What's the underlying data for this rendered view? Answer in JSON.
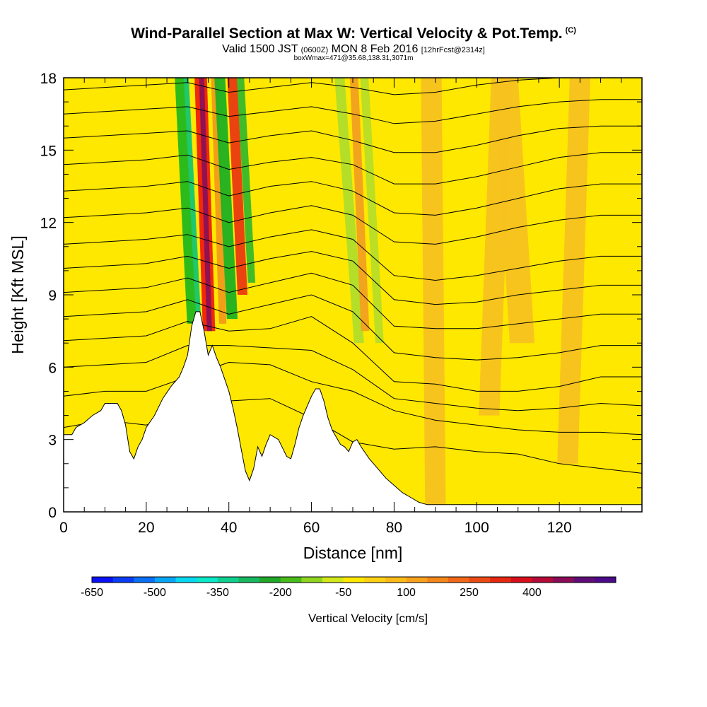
{
  "title": "Wind-Parallel Section at Max W: Vertical Velocity & Pot.Temp.",
  "copyright": "(C)",
  "subtitle": {
    "valid": "Valid 1500 JST",
    "utc": "(0600Z)",
    "date": "MON 8 Feb 2016",
    "forecast": "[12hrFcst@2314z]"
  },
  "box_info": "boxWmax=471@35.68,138.31,3071m",
  "chart_data": {
    "type": "heatmap",
    "xlabel": "Distance [nm]",
    "ylabel": "Height [Kft MSL]",
    "xlim": [
      0,
      140
    ],
    "ylim": [
      0,
      18
    ],
    "x_ticks": [
      0,
      20,
      40,
      60,
      80,
      100,
      120
    ],
    "y_ticks": [
      0,
      3,
      6,
      9,
      12,
      15,
      18
    ],
    "background_value_color": "#ffe800",
    "terrain_profile": [
      [
        0,
        3.2
      ],
      [
        2,
        3.2
      ],
      [
        3,
        3.5
      ],
      [
        5,
        3.7
      ],
      [
        7,
        4.0
      ],
      [
        9,
        4.2
      ],
      [
        10,
        4.5
      ],
      [
        13,
        4.5
      ],
      [
        14,
        4.2
      ],
      [
        15,
        3.6
      ],
      [
        16,
        2.5
      ],
      [
        17,
        2.2
      ],
      [
        18,
        2.7
      ],
      [
        19,
        3.0
      ],
      [
        20,
        3.5
      ],
      [
        22,
        4.0
      ],
      [
        24,
        4.7
      ],
      [
        26,
        5.2
      ],
      [
        28,
        5.6
      ],
      [
        29,
        6.0
      ],
      [
        30,
        6.5
      ],
      [
        31,
        7.7
      ],
      [
        32,
        8.3
      ],
      [
        33,
        8.3
      ],
      [
        34,
        7.5
      ],
      [
        35,
        6.5
      ],
      [
        36,
        6.9
      ],
      [
        37,
        6.4
      ],
      [
        38,
        6.0
      ],
      [
        39,
        5.5
      ],
      [
        40,
        5.0
      ],
      [
        41,
        4.3
      ],
      [
        42,
        3.5
      ],
      [
        43,
        2.6
      ],
      [
        44,
        1.7
      ],
      [
        45,
        1.3
      ],
      [
        46,
        1.8
      ],
      [
        47,
        2.7
      ],
      [
        48,
        2.3
      ],
      [
        49,
        2.8
      ],
      [
        50,
        3.2
      ],
      [
        52,
        3.0
      ],
      [
        54,
        2.3
      ],
      [
        55,
        2.2
      ],
      [
        56,
        2.8
      ],
      [
        57,
        3.5
      ],
      [
        58,
        4.0
      ],
      [
        59,
        4.4
      ],
      [
        60,
        4.8
      ],
      [
        61,
        5.1
      ],
      [
        62,
        5.1
      ],
      [
        63,
        4.6
      ],
      [
        64,
        3.9
      ],
      [
        65,
        3.4
      ],
      [
        66,
        3.1
      ],
      [
        67,
        2.8
      ],
      [
        68,
        2.7
      ],
      [
        69,
        2.5
      ],
      [
        70,
        2.9
      ],
      [
        71,
        3.0
      ],
      [
        72,
        2.7
      ],
      [
        74,
        2.2
      ],
      [
        76,
        1.8
      ],
      [
        78,
        1.4
      ],
      [
        80,
        1.1
      ],
      [
        82,
        0.8
      ],
      [
        84,
        0.6
      ],
      [
        86,
        0.4
      ],
      [
        88,
        0.3
      ],
      [
        90,
        0.3
      ],
      [
        140,
        0.3
      ]
    ],
    "vertical_velocity_bands": [
      {
        "x_bottom": 31.5,
        "x_top": 28.5,
        "half_width": 1.6,
        "bottom": 7.8,
        "color": "#22b81e"
      },
      {
        "x_bottom": 32.7,
        "x_top": 29.7,
        "half_width": 0.6,
        "bottom": 7.8,
        "color": "#1fc872"
      },
      {
        "x_bottom": 35.2,
        "x_top": 33.2,
        "half_width": 1.5,
        "bottom": 7.5,
        "color": "#f01e0a"
      },
      {
        "x_bottom": 35.3,
        "x_top": 33.4,
        "half_width": 0.6,
        "bottom": 7.5,
        "color": "#8a1058"
      },
      {
        "x_bottom": 38.5,
        "x_top": 36.6,
        "half_width": 0.9,
        "bottom": 7.8,
        "color": "#f29a1a"
      },
      {
        "x_bottom": 40.8,
        "x_top": 37.8,
        "half_width": 1.3,
        "bottom": 8.0,
        "color": "#1fb022"
      },
      {
        "x_bottom": 43.3,
        "x_top": 40.8,
        "half_width": 1.2,
        "bottom": 9.0,
        "color": "#ea3a10"
      },
      {
        "x_bottom": 45.5,
        "x_top": 42.8,
        "half_width": 0.9,
        "bottom": 9.5,
        "color": "#38b82a"
      },
      {
        "x_bottom": 71.5,
        "x_top": 66.8,
        "half_width": 1.2,
        "bottom": 7.0,
        "color": "#b0dd2a"
      },
      {
        "x_bottom": 73.0,
        "x_top": 70.3,
        "half_width": 1.0,
        "bottom": 7.5,
        "color": "#f2a020"
      },
      {
        "x_bottom": 76.5,
        "x_top": 72.8,
        "half_width": 1.0,
        "bottom": 7.0,
        "color": "#b8dd26"
      },
      {
        "x_bottom": 90.0,
        "x_top": 89.0,
        "half_width": 2.5,
        "bottom": 0.3,
        "color": "#f7c21f"
      },
      {
        "x_bottom": 103.0,
        "x_top": 106.0,
        "half_width": 2.5,
        "bottom": 4.0,
        "color": "#f7c21f"
      },
      {
        "x_bottom": 111.0,
        "x_top": 107.0,
        "half_width": 3.0,
        "bottom": 7.0,
        "color": "#f7c21f"
      },
      {
        "x_bottom": 122.0,
        "x_top": 125.0,
        "half_width": 2.5,
        "bottom": 2.0,
        "color": "#f7c21f"
      }
    ],
    "theta_contours": [
      [
        [
          0,
          3.5
        ],
        [
          10,
          3.8
        ],
        [
          20,
          3.6
        ],
        [
          30,
          4.3
        ],
        [
          40,
          4.6
        ],
        [
          50,
          4.7
        ],
        [
          60,
          3.9
        ],
        [
          70,
          2.9
        ],
        [
          80,
          2.6
        ],
        [
          90,
          2.7
        ],
        [
          100,
          2.5
        ],
        [
          110,
          2.4
        ],
        [
          120,
          2.0
        ],
        [
          130,
          1.8
        ],
        [
          140,
          1.6
        ]
      ],
      [
        [
          0,
          4.8
        ],
        [
          10,
          5.0
        ],
        [
          20,
          5.0
        ],
        [
          30,
          5.6
        ],
        [
          40,
          6.2
        ],
        [
          50,
          6.1
        ],
        [
          60,
          5.4
        ],
        [
          70,
          5.0
        ],
        [
          80,
          4.2
        ],
        [
          90,
          3.8
        ],
        [
          100,
          3.6
        ],
        [
          110,
          3.4
        ],
        [
          120,
          3.3
        ],
        [
          130,
          3.3
        ],
        [
          140,
          3.2
        ]
      ],
      [
        [
          0,
          6.0
        ],
        [
          10,
          6.1
        ],
        [
          20,
          6.2
        ],
        [
          30,
          6.9
        ],
        [
          40,
          6.9
        ],
        [
          50,
          6.8
        ],
        [
          60,
          6.7
        ],
        [
          70,
          5.9
        ],
        [
          80,
          4.7
        ],
        [
          90,
          4.5
        ],
        [
          100,
          4.3
        ],
        [
          110,
          4.2
        ],
        [
          120,
          4.3
        ],
        [
          130,
          4.5
        ],
        [
          140,
          4.4
        ]
      ],
      [
        [
          0,
          7.1
        ],
        [
          10,
          7.2
        ],
        [
          20,
          7.3
        ],
        [
          30,
          7.9
        ],
        [
          40,
          7.5
        ],
        [
          50,
          7.6
        ],
        [
          60,
          8.1
        ],
        [
          70,
          7.0
        ],
        [
          80,
          5.4
        ],
        [
          90,
          5.3
        ],
        [
          100,
          5.0
        ],
        [
          110,
          5.0
        ],
        [
          120,
          5.2
        ],
        [
          130,
          5.6
        ],
        [
          140,
          5.6
        ]
      ],
      [
        [
          0,
          8.1
        ],
        [
          10,
          8.2
        ],
        [
          20,
          8.3
        ],
        [
          30,
          8.8
        ],
        [
          40,
          8.2
        ],
        [
          50,
          8.6
        ],
        [
          60,
          9.0
        ],
        [
          70,
          8.3
        ],
        [
          80,
          6.6
        ],
        [
          90,
          6.4
        ],
        [
          100,
          6.3
        ],
        [
          110,
          6.4
        ],
        [
          120,
          6.6
        ],
        [
          130,
          6.9
        ],
        [
          140,
          6.9
        ]
      ],
      [
        [
          0,
          9.1
        ],
        [
          10,
          9.2
        ],
        [
          20,
          9.3
        ],
        [
          30,
          9.7
        ],
        [
          40,
          9.1
        ],
        [
          50,
          9.5
        ],
        [
          60,
          9.9
        ],
        [
          70,
          9.4
        ],
        [
          80,
          7.7
        ],
        [
          90,
          7.6
        ],
        [
          100,
          7.6
        ],
        [
          110,
          7.8
        ],
        [
          120,
          8.0
        ],
        [
          130,
          8.2
        ],
        [
          140,
          8.2
        ]
      ],
      [
        [
          0,
          10.1
        ],
        [
          10,
          10.2
        ],
        [
          20,
          10.3
        ],
        [
          30,
          10.6
        ],
        [
          40,
          10.1
        ],
        [
          50,
          10.5
        ],
        [
          60,
          10.8
        ],
        [
          70,
          10.4
        ],
        [
          80,
          8.8
        ],
        [
          90,
          8.6
        ],
        [
          100,
          8.7
        ],
        [
          110,
          9.0
        ],
        [
          120,
          9.2
        ],
        [
          130,
          9.4
        ],
        [
          140,
          9.4
        ]
      ],
      [
        [
          0,
          11.1
        ],
        [
          10,
          11.2
        ],
        [
          20,
          11.3
        ],
        [
          30,
          11.5
        ],
        [
          40,
          11.0
        ],
        [
          50,
          11.4
        ],
        [
          60,
          11.7
        ],
        [
          70,
          11.3
        ],
        [
          80,
          9.8
        ],
        [
          90,
          9.6
        ],
        [
          100,
          9.8
        ],
        [
          110,
          10.1
        ],
        [
          120,
          10.4
        ],
        [
          130,
          10.6
        ],
        [
          140,
          10.6
        ]
      ],
      [
        [
          0,
          12.2
        ],
        [
          10,
          12.3
        ],
        [
          20,
          12.4
        ],
        [
          30,
          12.6
        ],
        [
          40,
          12.0
        ],
        [
          50,
          12.4
        ],
        [
          60,
          12.7
        ],
        [
          70,
          12.3
        ],
        [
          80,
          11.2
        ],
        [
          90,
          11.1
        ],
        [
          100,
          11.4
        ],
        [
          110,
          11.8
        ],
        [
          120,
          12.1
        ],
        [
          130,
          12.3
        ],
        [
          140,
          12.3
        ]
      ],
      [
        [
          0,
          13.3
        ],
        [
          10,
          13.4
        ],
        [
          20,
          13.5
        ],
        [
          30,
          13.7
        ],
        [
          40,
          13.1
        ],
        [
          50,
          13.5
        ],
        [
          60,
          13.7
        ],
        [
          70,
          13.3
        ],
        [
          80,
          12.4
        ],
        [
          90,
          12.3
        ],
        [
          100,
          12.6
        ],
        [
          110,
          13.0
        ],
        [
          120,
          13.4
        ],
        [
          130,
          13.6
        ],
        [
          140,
          13.6
        ]
      ],
      [
        [
          0,
          14.4
        ],
        [
          10,
          14.5
        ],
        [
          20,
          14.6
        ],
        [
          30,
          14.8
        ],
        [
          40,
          14.2
        ],
        [
          50,
          14.5
        ],
        [
          60,
          14.7
        ],
        [
          70,
          14.4
        ],
        [
          80,
          13.6
        ],
        [
          90,
          13.6
        ],
        [
          100,
          13.9
        ],
        [
          110,
          14.3
        ],
        [
          120,
          14.7
        ],
        [
          130,
          14.9
        ],
        [
          140,
          14.9
        ]
      ],
      [
        [
          0,
          15.5
        ],
        [
          10,
          15.6
        ],
        [
          20,
          15.7
        ],
        [
          30,
          15.8
        ],
        [
          40,
          15.3
        ],
        [
          50,
          15.6
        ],
        [
          60,
          15.8
        ],
        [
          70,
          15.4
        ],
        [
          80,
          14.9
        ],
        [
          90,
          14.9
        ],
        [
          100,
          15.2
        ],
        [
          110,
          15.6
        ],
        [
          120,
          15.9
        ],
        [
          130,
          16.0
        ],
        [
          140,
          16.0
        ]
      ],
      [
        [
          0,
          16.5
        ],
        [
          10,
          16.6
        ],
        [
          20,
          16.7
        ],
        [
          30,
          16.8
        ],
        [
          40,
          16.4
        ],
        [
          50,
          16.6
        ],
        [
          60,
          16.8
        ],
        [
          70,
          16.5
        ],
        [
          80,
          16.1
        ],
        [
          90,
          16.2
        ],
        [
          100,
          16.5
        ],
        [
          110,
          16.8
        ],
        [
          120,
          17.0
        ],
        [
          130,
          17.1
        ],
        [
          140,
          17.1
        ]
      ],
      [
        [
          0,
          17.5
        ],
        [
          10,
          17.6
        ],
        [
          20,
          17.7
        ],
        [
          30,
          17.8
        ],
        [
          40,
          17.4
        ],
        [
          50,
          17.6
        ],
        [
          60,
          17.8
        ],
        [
          70,
          17.6
        ],
        [
          80,
          17.3
        ],
        [
          90,
          17.4
        ],
        [
          100,
          17.7
        ],
        [
          110,
          17.9
        ],
        [
          120,
          18.0
        ],
        [
          130,
          18.0
        ],
        [
          140,
          18.0
        ]
      ]
    ],
    "colorbar": {
      "label": "Vertical Velocity [cm/s]",
      "tick_labels": [
        "-650",
        "-500",
        "-350",
        "-200",
        "-50",
        "100",
        "250",
        "400"
      ],
      "colors": [
        "#0a10f5",
        "#0a3cf5",
        "#0a70f5",
        "#08a6f5",
        "#08d8f2",
        "#0ae8c8",
        "#10d090",
        "#18b860",
        "#20a828",
        "#48bc1a",
        "#90d420",
        "#d2e81a",
        "#ffe800",
        "#fdd214",
        "#fbba18",
        "#f8a21c",
        "#f4861c",
        "#f06818",
        "#ec4a14",
        "#e62810",
        "#d80e1c",
        "#b40a38",
        "#8a0c58",
        "#600c78",
        "#4a0a8a"
      ]
    }
  }
}
